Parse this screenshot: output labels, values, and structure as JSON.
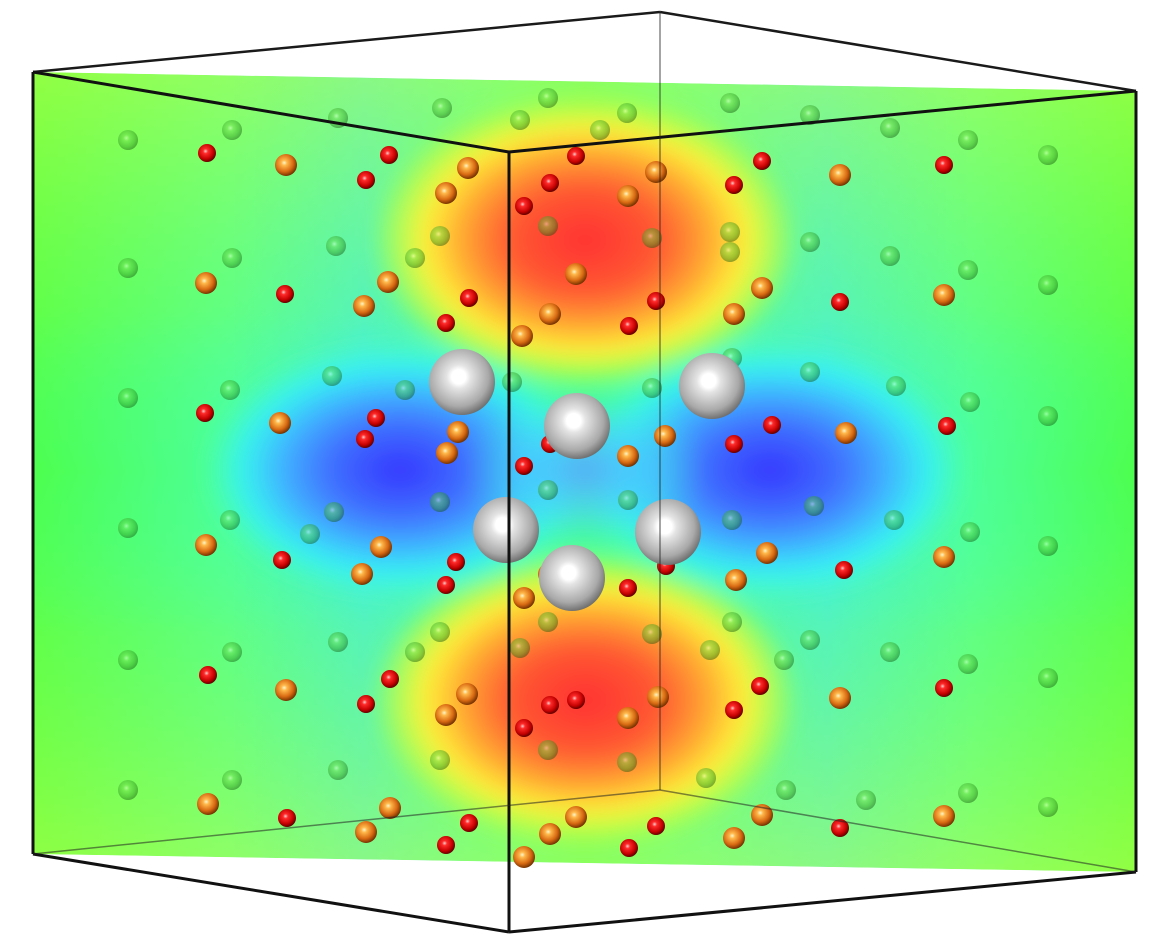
{
  "figure": {
    "kind": "3d-crystal-structure-with-field-slice",
    "colormap": [
      "#2b2bff",
      "#3fa0ff",
      "#33e6ff",
      "#46ff9c",
      "#4dff4d",
      "#b8ff3a",
      "#fffb3a",
      "#ffb03a",
      "#ff3a3a"
    ],
    "background": "#ffffff",
    "cell_edge_color": "#000000",
    "atom_species": [
      {
        "name": "large-gray-atom",
        "color": "#c8c8c8"
      },
      {
        "name": "orange-atom",
        "color": "#e07a1a"
      },
      {
        "name": "red-atom",
        "color": "#e01010"
      },
      {
        "name": "green-atom",
        "color": "#33cc33"
      }
    ]
  }
}
